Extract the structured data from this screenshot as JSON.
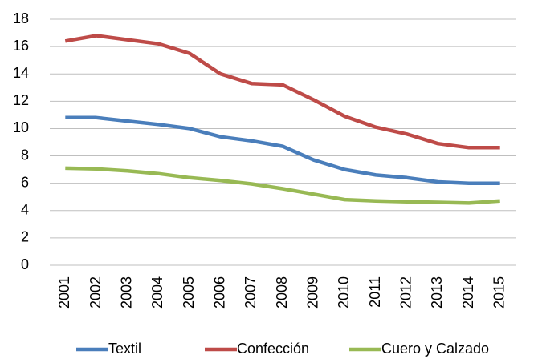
{
  "chart_data": {
    "type": "line",
    "categories": [
      "2001",
      "2002",
      "2003",
      "2004",
      "2005",
      "2006",
      "2007",
      "2008",
      "2009",
      "2010",
      "2011",
      "2012",
      "2013",
      "2014",
      "2015"
    ],
    "series": [
      {
        "name": "Textil",
        "color": "#4a7ebb",
        "values": [
          10.8,
          10.8,
          10.55,
          10.3,
          10.0,
          9.4,
          9.1,
          8.7,
          7.7,
          7.0,
          6.6,
          6.4,
          6.1,
          6.0,
          6.0
        ]
      },
      {
        "name": "Confección",
        "color": "#be4b48",
        "values": [
          16.4,
          16.8,
          16.5,
          16.2,
          15.5,
          14.0,
          13.3,
          13.2,
          12.1,
          10.9,
          10.1,
          9.6,
          8.9,
          8.6,
          8.6
        ]
      },
      {
        "name": "Cuero y Calzado",
        "color": "#98b954",
        "values": [
          7.1,
          7.05,
          6.9,
          6.7,
          6.4,
          6.2,
          5.95,
          5.6,
          5.2,
          4.8,
          4.7,
          4.65,
          4.6,
          4.55,
          4.7
        ]
      }
    ],
    "ylim": [
      0,
      18
    ],
    "yticks": [
      0,
      2,
      4,
      6,
      8,
      10,
      12,
      14,
      16,
      18
    ],
    "grid": true,
    "legend": "bottom"
  }
}
